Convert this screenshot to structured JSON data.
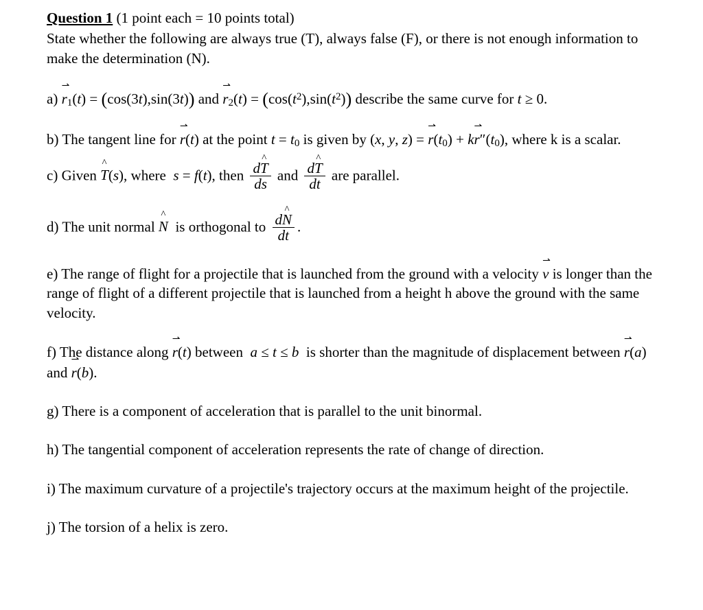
{
  "header": {
    "question_label": "Question 1",
    "points": "(1 point each = 10 points total)",
    "instructions": "State whether the following are always true (T), always false (F), or there is not enough information to make the determination (N)."
  },
  "parts": {
    "a": {
      "label": "a)",
      "pre": "",
      "mid1": " and ",
      "mid2": " describe the same curve for ",
      "tail": "."
    },
    "b": {
      "label": "b)",
      "tail": ", where k is a scalar."
    },
    "c": {
      "label": "c)",
      "end": " are parallel."
    },
    "d": {
      "label": "d)",
      "end": "."
    },
    "e": {
      "label": "e)",
      "text": " is longer than the range of flight of a different projectile that is launched from a height h above the ground with the same velocity."
    },
    "f": {
      "label": "f)"
    },
    "g": {
      "label": "g)",
      "text": "There is a component of acceleration that is parallel to the unit binormal."
    },
    "h": {
      "label": "h)",
      "text": "The tangential component of acceleration represents the rate of change of direction."
    },
    "i": {
      "label": "i)",
      "text": "The maximum curvature of a projectile's trajectory occurs at the maximum height of the projectile."
    },
    "j": {
      "label": "j)",
      "text": "The torsion of a helix is zero."
    }
  }
}
